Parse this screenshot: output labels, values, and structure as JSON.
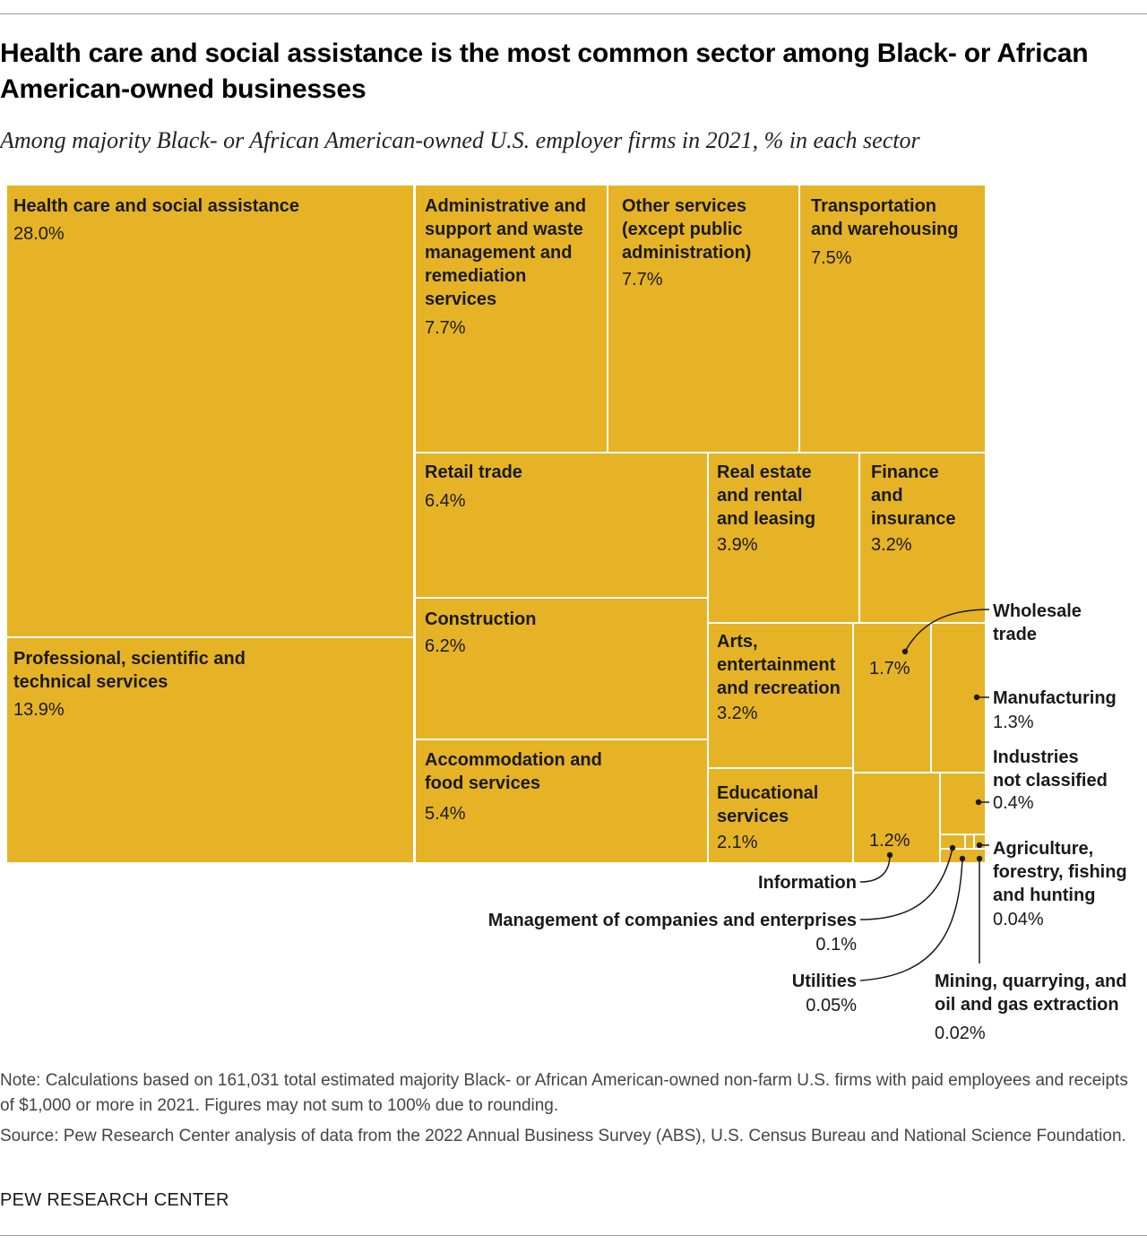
{
  "title": "Health care and social assistance is the most common sector among Black- or African American-owned businesses",
  "subtitle": "Among majority Black- or African American-owned U.S. employer firms in 2021, % in each sector",
  "chart_data": {
    "type": "treemap",
    "unit": "%",
    "fill_color": "#e5b325",
    "border_color": "#ffffff",
    "sectors": [
      {
        "label": "Health care and social assistance",
        "value": 28.0,
        "display": "28.0%"
      },
      {
        "label": "Professional, scientific and technical services",
        "value": 13.9,
        "display": "13.9%"
      },
      {
        "label": "Administrative and support and waste management and remediation services",
        "value": 7.7,
        "display": "7.7%"
      },
      {
        "label": "Other services (except public administration)",
        "value": 7.7,
        "display": "7.7%"
      },
      {
        "label": "Transportation and warehousing",
        "value": 7.5,
        "display": "7.5%"
      },
      {
        "label": "Retail trade",
        "value": 6.4,
        "display": "6.4%"
      },
      {
        "label": "Construction",
        "value": 6.2,
        "display": "6.2%"
      },
      {
        "label": "Accommodation and food services",
        "value": 5.4,
        "display": "5.4%"
      },
      {
        "label": "Real estate and rental and leasing",
        "value": 3.9,
        "display": "3.9%"
      },
      {
        "label": "Finance and insurance",
        "value": 3.2,
        "display": "3.2%"
      },
      {
        "label": "Arts, entertainment and recreation",
        "value": 3.2,
        "display": "3.2%"
      },
      {
        "label": "Educational services",
        "value": 2.1,
        "display": "2.1%"
      },
      {
        "label": "Wholesale trade",
        "value": 1.7,
        "display": "1.7%"
      },
      {
        "label": "Manufacturing",
        "value": 1.3,
        "display": "1.3%"
      },
      {
        "label": "Information",
        "value": 1.2,
        "display": "1.2%"
      },
      {
        "label": "Industries not classified",
        "value": 0.4,
        "display": "0.4%"
      },
      {
        "label": "Management of companies and enterprises",
        "value": 0.1,
        "display": "0.1%"
      },
      {
        "label": "Utilities",
        "value": 0.05,
        "display": "0.05%"
      },
      {
        "label": "Agriculture, forestry, fishing and hunting",
        "value": 0.04,
        "display": "0.04%"
      },
      {
        "label": "Mining, quarrying, and oil and gas extraction",
        "value": 0.02,
        "display": "0.02%"
      }
    ]
  },
  "note": "Note: Calculations based on 161,031 total estimated majority Black- or African American-owned non-farm U.S. firms with paid employees and receipts of $1,000 or more in 2021. Figures may not sum to 100% due to rounding.",
  "source": "Source: Pew Research Center analysis of data from the 2022 Annual Business Survey (ABS), U.S. Census Bureau and National Science Foundation.",
  "brand": "PEW RESEARCH CENTER"
}
